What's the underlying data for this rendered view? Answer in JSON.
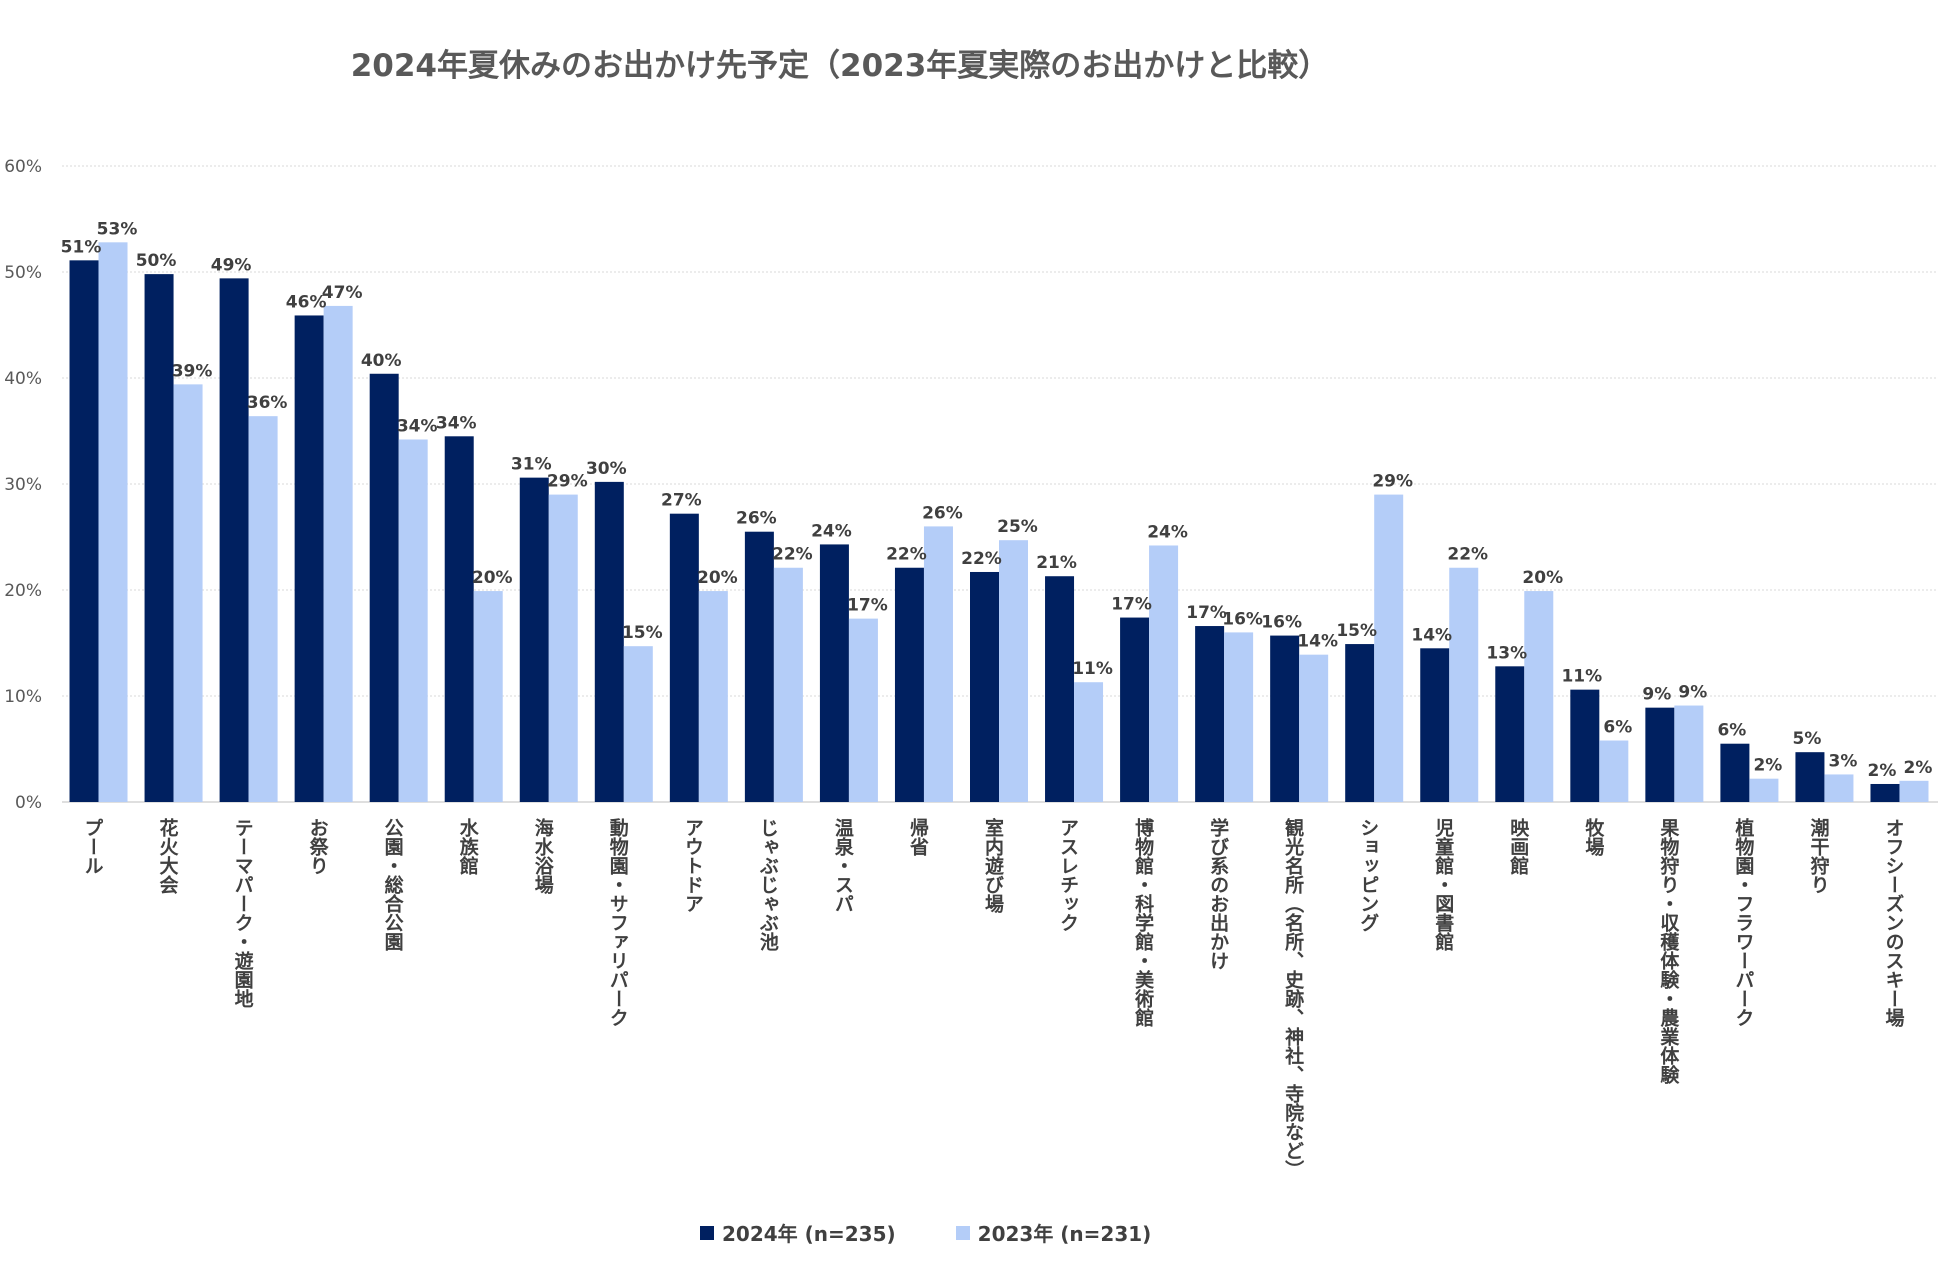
{
  "chart_data": {
    "type": "bar",
    "title": "2024年夏休みのお出かけ先予定（2023年夏実際のお出かけと比較）",
    "ylim": [
      0,
      60
    ],
    "yticks": [
      "0%",
      "10%",
      "20%",
      "30%",
      "40%",
      "50%",
      "60%"
    ],
    "grid": true,
    "legend_position": "bottom",
    "categories": [
      "プール",
      "花火大会",
      "テーマパーク・遊園地",
      "お祭り",
      "公園・総合公園",
      "水族館",
      "海水浴場",
      "動物園・サファリパーク",
      "アウトドア",
      "じゃぶじゃぶ池",
      "温泉・スパ",
      "帰省",
      "室内遊び場",
      "アスレチック",
      "博物館・科学館・美術館",
      "学び系のお出かけ",
      "観光名所（名所、史跡、神社、寺院など）",
      "ショッピング",
      "児童館・図書館",
      "映画館",
      "牧場",
      "果物狩り・収穫体験・農業体験",
      "植物園・フラワーパーク",
      "潮干狩り",
      "オフシーズンのスキー場"
    ],
    "series": [
      {
        "name": "2024年 (n=235)",
        "color": "#002060",
        "values": [
          51,
          50,
          49,
          46,
          40,
          34,
          31,
          30,
          27,
          26,
          24,
          22,
          22,
          21,
          17,
          17,
          16,
          15,
          14,
          13,
          11,
          9,
          6,
          5,
          2
        ],
        "plot_values": [
          51.1,
          49.8,
          49.4,
          45.9,
          40.4,
          34.5,
          30.6,
          30.2,
          27.2,
          25.5,
          24.3,
          22.1,
          21.7,
          21.3,
          17.4,
          16.6,
          15.7,
          14.9,
          14.5,
          12.8,
          10.6,
          8.9,
          5.5,
          4.7,
          1.7
        ],
        "labels": [
          "51%",
          "50%",
          "49%",
          "46%",
          "40%",
          "34%",
          "31%",
          "30%",
          "27%",
          "26%",
          "24%",
          "22%",
          "22%",
          "21%",
          "17%",
          "17%",
          "16%",
          "15%",
          "14%",
          "13%",
          "11%",
          "9%",
          "6%",
          "5%",
          "2%"
        ]
      },
      {
        "name": "2023年 (n=231)",
        "color": "#B4CDF8",
        "values": [
          53,
          39,
          36,
          47,
          34,
          20,
          29,
          15,
          20,
          22,
          17,
          26,
          25,
          11,
          24,
          16,
          14,
          29,
          22,
          20,
          6,
          9,
          2,
          3,
          2
        ],
        "plot_values": [
          52.8,
          39.4,
          36.4,
          46.8,
          34.2,
          19.9,
          29.0,
          14.7,
          19.9,
          22.1,
          17.3,
          26.0,
          24.7,
          11.3,
          24.2,
          16.0,
          13.9,
          29.0,
          22.1,
          19.9,
          5.8,
          9.1,
          2.2,
          2.6,
          2.0
        ],
        "labels": [
          "53%",
          "39%",
          "36%",
          "47%",
          "34%",
          "20%",
          "29%",
          "15%",
          "20%",
          "22%",
          "17%",
          "26%",
          "25%",
          "11%",
          "24%",
          "16%",
          "14%",
          "29%",
          "22%",
          "20%",
          "6%",
          "9%",
          "2%",
          "3%",
          "2%"
        ]
      }
    ]
  }
}
